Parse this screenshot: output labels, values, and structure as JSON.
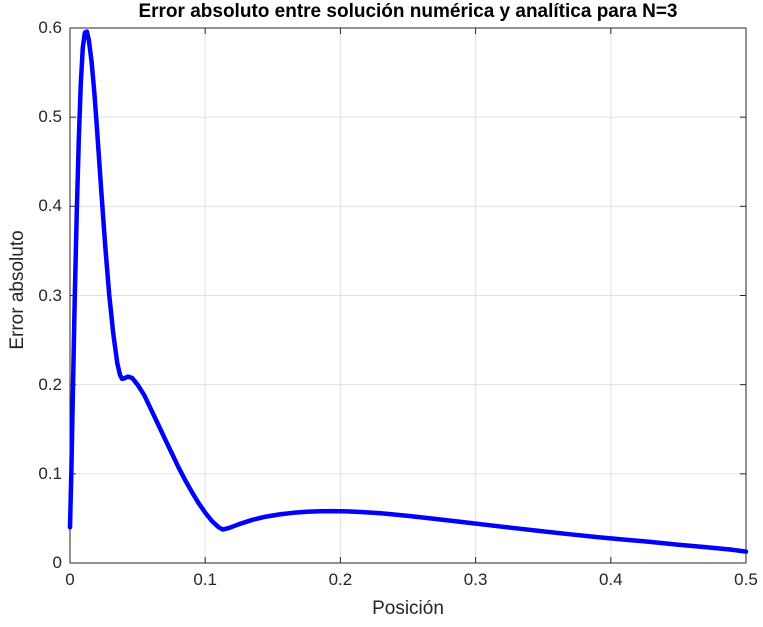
{
  "chart_data": {
    "type": "line",
    "title": "Error absoluto entre solución numérica y analítica para N=3",
    "xlabel": "Posición",
    "ylabel": "Error absoluto",
    "xlim": [
      0,
      0.5
    ],
    "ylim": [
      0,
      0.6
    ],
    "xticks": [
      0,
      0.1,
      0.2,
      0.3,
      0.4,
      0.5
    ],
    "yticks": [
      0,
      0.1,
      0.2,
      0.3,
      0.4,
      0.5,
      0.6
    ],
    "xtick_labels": [
      "0",
      "0.1",
      "0.2",
      "0.3",
      "0.4",
      "0.5"
    ],
    "ytick_labels": [
      "0",
      "0.1",
      "0.2",
      "0.3",
      "0.4",
      "0.5",
      "0.6"
    ],
    "grid": true,
    "legend": "none",
    "line_color": "#0000ff",
    "line_width": 4.5,
    "axes_color": "#262626",
    "grid_color": "#e0e0e0",
    "background_color": "#ffffff",
    "series": [
      {
        "name": "absolute-error",
        "x": [
          0,
          0.001,
          0.002,
          0.0035,
          0.005,
          0.0065,
          0.008,
          0.0095,
          0.011,
          0.0125,
          0.014,
          0.016,
          0.018,
          0.02,
          0.023,
          0.026,
          0.029,
          0.032,
          0.035,
          0.037,
          0.0385,
          0.04,
          0.043,
          0.046,
          0.05,
          0.055,
          0.06,
          0.065,
          0.07,
          0.075,
          0.08,
          0.085,
          0.09,
          0.095,
          0.1,
          0.105,
          0.11,
          0.113,
          0.118,
          0.125,
          0.135,
          0.145,
          0.155,
          0.165,
          0.175,
          0.185,
          0.195,
          0.205,
          0.215,
          0.23,
          0.25,
          0.27,
          0.29,
          0.31,
          0.33,
          0.35,
          0.37,
          0.39,
          0.41,
          0.43,
          0.45,
          0.47,
          0.49,
          0.5
        ],
        "y": [
          0.04,
          0.105,
          0.18,
          0.295,
          0.395,
          0.475,
          0.538,
          0.578,
          0.595,
          0.596,
          0.586,
          0.562,
          0.528,
          0.487,
          0.42,
          0.356,
          0.301,
          0.257,
          0.224,
          0.211,
          0.2065,
          0.207,
          0.209,
          0.2075,
          0.2,
          0.188,
          0.172,
          0.156,
          0.14,
          0.124,
          0.108,
          0.0935,
          0.08,
          0.0675,
          0.0565,
          0.047,
          0.04,
          0.0375,
          0.0395,
          0.0435,
          0.0485,
          0.052,
          0.0545,
          0.0563,
          0.0574,
          0.058,
          0.0582,
          0.0579,
          0.0572,
          0.0557,
          0.0528,
          0.0495,
          0.046,
          0.0424,
          0.0389,
          0.0354,
          0.0322,
          0.0291,
          0.0262,
          0.0235,
          0.0205,
          0.0178,
          0.0148,
          0.0128
        ]
      }
    ]
  }
}
